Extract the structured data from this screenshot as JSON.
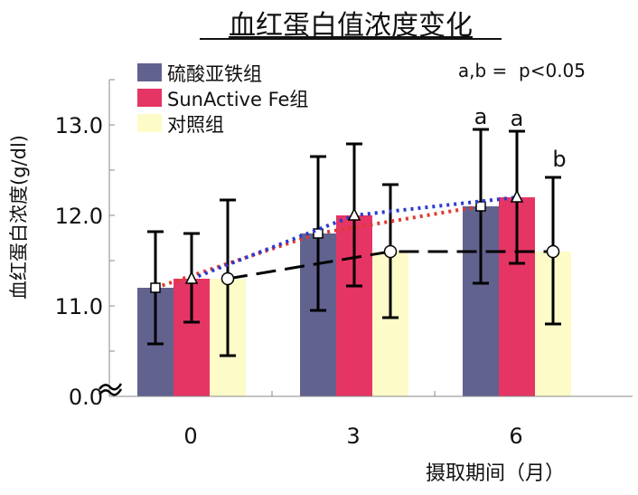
{
  "chart_data": {
    "type": "bar",
    "title": "血红蛋白值浓度变化",
    "xlabel": "摄取期间（月）",
    "ylabel": "血红蛋白浓度(g/dl)",
    "categories": [
      "0",
      "3",
      "6"
    ],
    "yticks": [
      "0.0",
      "11.0",
      "12.0",
      "13.0"
    ],
    "ylim_broken": [
      10.5,
      13.5
    ],
    "axis_break": true,
    "grid": false,
    "legend_placement": "top-left",
    "annotation": "a,b =  p<0.05",
    "series": [
      {
        "name": "硫酸亚铁组",
        "color": "#62628f",
        "line_color": "#e03a2e",
        "line_style": "dotted",
        "marker": "square",
        "values": [
          11.2,
          11.8,
          12.1
        ],
        "err_low": [
          10.58,
          10.95,
          11.25
        ],
        "err_high": [
          11.82,
          12.65,
          12.95
        ],
        "letters": [
          "",
          "",
          "a"
        ]
      },
      {
        "name": "SunActive Fe组",
        "color": "#e53565",
        "line_color": "#2b3bd0",
        "line_style": "dotted",
        "marker": "triangle",
        "values": [
          11.3,
          12.0,
          12.2
        ],
        "err_low": [
          10.82,
          11.22,
          11.47
        ],
        "err_high": [
          11.8,
          12.79,
          12.93
        ],
        "letters": [
          "",
          "",
          "a"
        ]
      },
      {
        "name": "对照组",
        "color": "#fdfbc8",
        "line_color": "#000000",
        "line_style": "dashed",
        "marker": "circle",
        "values": [
          11.3,
          11.6,
          11.6
        ],
        "err_low": [
          10.45,
          10.87,
          10.8
        ],
        "err_high": [
          12.17,
          12.34,
          12.42
        ],
        "letters": [
          "",
          "",
          "b"
        ]
      }
    ]
  }
}
